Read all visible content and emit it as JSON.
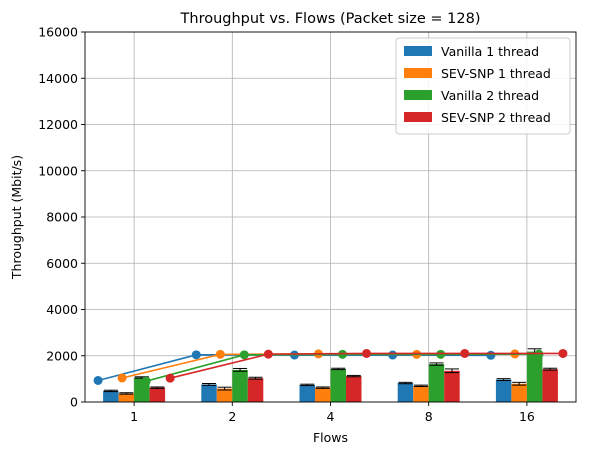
{
  "chart_data": {
    "type": "bar",
    "title": "Throughput vs. Flows (Packet size = 128)",
    "xlabel": "Flows",
    "ylabel": "Throughput (Mbit/s)",
    "categories": [
      "1",
      "2",
      "4",
      "8",
      "16"
    ],
    "ylim": [
      0,
      16000
    ],
    "yticks": [
      0,
      2000,
      4000,
      6000,
      8000,
      10000,
      12000,
      14000,
      16000
    ],
    "grid": true,
    "legend_position": "top-right",
    "series": [
      {
        "name": "Vanilla 1 thread",
        "color": "#1f77b4",
        "bar_values": [
          480,
          760,
          740,
          820,
          970
        ],
        "bar_errors": [
          30,
          40,
          30,
          30,
          40
        ],
        "line_values": [
          930,
          2040,
          2030,
          2030,
          2020
        ]
      },
      {
        "name": "SEV-SNP 1 thread",
        "color": "#ff7f0e",
        "bar_values": [
          370,
          580,
          620,
          700,
          790
        ],
        "bar_errors": [
          30,
          60,
          30,
          30,
          60
        ],
        "line_values": [
          1040,
          2060,
          2080,
          2060,
          2080
        ]
      },
      {
        "name": "Vanilla 2 thread",
        "color": "#2ca02c",
        "bar_values": [
          1060,
          1390,
          1430,
          1640,
          2180
        ],
        "bar_errors": [
          30,
          60,
          30,
          50,
          120
        ],
        "line_values": [
          900,
          2040,
          2060,
          2060,
          2070
        ]
      },
      {
        "name": "SEV-SNP 2 thread",
        "color": "#d62728",
        "bar_values": [
          620,
          1030,
          1120,
          1350,
          1420
        ],
        "bar_errors": [
          30,
          40,
          30,
          80,
          40
        ],
        "line_values": [
          1030,
          2070,
          2100,
          2100,
          2100
        ]
      }
    ]
  }
}
